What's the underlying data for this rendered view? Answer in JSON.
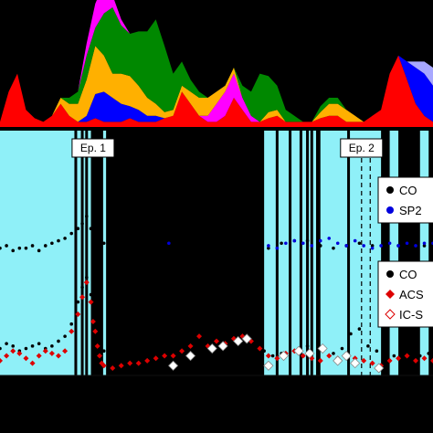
{
  "chart_data": [
    {
      "type": "area",
      "panel": "top",
      "stacked": true,
      "title": "",
      "xlabel": "",
      "ylabel": "",
      "x": [
        0,
        2,
        4,
        6,
        8,
        10,
        12,
        14,
        16,
        18,
        20,
        22,
        24,
        26,
        28,
        30,
        32,
        34,
        36,
        38,
        40,
        42,
        44,
        46,
        48,
        50,
        52,
        54,
        56,
        58,
        60,
        62,
        64,
        66,
        68,
        70,
        72,
        74,
        76,
        78,
        80,
        82,
        84,
        86,
        88,
        90,
        92,
        94,
        96,
        98,
        100
      ],
      "series": [
        {
          "color": "#ff0000",
          "values": [
            0.05,
            0.3,
            0.45,
            0.15,
            0.08,
            0.05,
            0.1,
            0.2,
            0.1,
            0.05,
            0.05,
            0.08,
            0.05,
            0.05,
            0.05,
            0.08,
            0.05,
            0.05,
            0.05,
            0.08,
            0.1,
            0.3,
            0.2,
            0.1,
            0.05,
            0.05,
            0.1,
            0.25,
            0.15,
            0.05,
            0.05,
            0.08,
            0.1,
            0.05,
            0.05,
            0.05,
            0.05,
            0.08,
            0.1,
            0.1,
            0.05,
            0.05,
            0.05,
            0.1,
            0.15,
            0.45,
            0.6,
            0.4,
            0.2,
            0.1,
            0.05
          ]
        },
        {
          "color": "#ff00ff",
          "values": [
            0,
            0,
            0,
            0,
            0,
            0,
            0,
            0,
            0,
            0,
            0,
            0,
            0,
            0,
            0,
            0,
            0,
            0,
            0,
            0,
            0,
            0,
            0,
            0,
            0.05,
            0.15,
            0.2,
            0.2,
            0.1,
            0.05,
            0,
            0,
            0,
            0,
            0,
            0,
            0,
            0,
            0,
            0,
            0,
            0,
            0,
            0,
            0,
            0,
            0,
            0,
            0,
            0,
            0
          ]
        },
        {
          "color": "#0000ff",
          "values": [
            0,
            0,
            0,
            0,
            0,
            0,
            0,
            0,
            0,
            0,
            0.05,
            0.2,
            0.25,
            0.2,
            0.15,
            0.1,
            0.1,
            0.05,
            0.05,
            0,
            0,
            0,
            0,
            0,
            0,
            0,
            0,
            0,
            0,
            0,
            0,
            0,
            0,
            0,
            0,
            0,
            0,
            0,
            0,
            0,
            0,
            0,
            0,
            0,
            0,
            0,
            0,
            0.15,
            0.3,
            0.35,
            0.3
          ]
        },
        {
          "color": "#ffb000",
          "values": [
            0,
            0,
            0,
            0,
            0,
            0,
            0,
            0.05,
            0.1,
            0.15,
            0.3,
            0.4,
            0.3,
            0.2,
            0.25,
            0.25,
            0.2,
            0.15,
            0.1,
            0.05,
            0.05,
            0.05,
            0.1,
            0.15,
            0.15,
            0.1,
            0.05,
            0.05,
            0,
            0,
            0,
            0.05,
            0.05,
            0,
            0,
            0,
            0,
            0.05,
            0.1,
            0.1,
            0.1,
            0.05,
            0,
            0,
            0,
            0,
            0,
            0,
            0,
            0,
            0
          ]
        },
        {
          "color": "#008800",
          "values": [
            0,
            0,
            0,
            0,
            0,
            0,
            0,
            0,
            0.05,
            0.1,
            0.2,
            0.15,
            0.35,
            0.55,
            0.4,
            0.35,
            0.45,
            0.55,
            0.7,
            0.55,
            0.3,
            0.2,
            0.1,
            0.05,
            0,
            0,
            0,
            0,
            0.1,
            0.2,
            0.4,
            0.3,
            0.2,
            0.1,
            0.05,
            0,
            0,
            0.05,
            0.05,
            0.05,
            0,
            0,
            0,
            0,
            0,
            0,
            0,
            0,
            0,
            0,
            0
          ]
        },
        {
          "color": "#ff00ff",
          "values": [
            0,
            0,
            0,
            0,
            0,
            0,
            0,
            0,
            0,
            0,
            0.1,
            0.2,
            0.25,
            0.1,
            0.05,
            0,
            0,
            0,
            0,
            0,
            0,
            0,
            0,
            0,
            0,
            0,
            0,
            0,
            0,
            0,
            0,
            0,
            0,
            0,
            0,
            0,
            0,
            0,
            0,
            0,
            0,
            0,
            0,
            0,
            0,
            0,
            0,
            0,
            0,
            0,
            0
          ]
        },
        {
          "color": "#a8a8ff",
          "values": [
            0,
            0,
            0,
            0,
            0,
            0,
            0,
            0,
            0,
            0,
            0,
            0,
            0,
            0,
            0,
            0,
            0,
            0,
            0,
            0,
            0,
            0,
            0,
            0,
            0,
            0,
            0,
            0,
            0,
            0,
            0,
            0,
            0,
            0,
            0,
            0,
            0,
            0,
            0,
            0,
            0,
            0,
            0,
            0,
            0,
            0,
            0,
            0,
            0.05,
            0.1,
            0.15
          ]
        }
      ]
    },
    {
      "type": "scatter",
      "panel": "bottom",
      "title": "",
      "xlabel": "",
      "ylabel": "",
      "x_range": [
        0,
        100
      ],
      "y_range": [
        0,
        100
      ],
      "shaded_intervals": [
        [
          0,
          21
        ],
        [
          23.5,
          24.5
        ],
        [
          61,
          73
        ],
        [
          74,
          88
        ],
        [
          90,
          92
        ],
        [
          97,
          99
        ]
      ],
      "vertical_lines": [
        17.5,
        19,
        20,
        21.5,
        22.5,
        23.5,
        55.5,
        56.5,
        57.5,
        58.5,
        64,
        67,
        69.5,
        71,
        72,
        80.5
      ],
      "dashed_lines": [
        83.5,
        85.5
      ],
      "episodes": [
        {
          "label": "Ep. 1",
          "x": 21.5
        },
        {
          "label": "Ep. 2",
          "x": 83.5
        }
      ],
      "legends": [
        {
          "entries": [
            {
              "label": "CO",
              "color": "#000000",
              "marker": "circle"
            },
            {
              "label": "SP2",
              "color": "#0000dd",
              "marker": "circle"
            }
          ]
        },
        {
          "entries": [
            {
              "label": "CO",
              "color": "#000000",
              "marker": "circle"
            },
            {
              "label": "ACS",
              "color": "#dd0000",
              "marker": "diamond"
            },
            {
              "label": "IC-S",
              "color": "#ffffff",
              "marker": "open-diamond"
            }
          ]
        }
      ],
      "series": [
        {
          "name": "CO",
          "color": "#000000",
          "x": [
            0,
            1.5,
            3,
            4.5,
            6,
            7.5,
            9,
            10.5,
            12,
            13.5,
            15,
            16.5,
            18,
            19,
            20,
            21,
            24,
            27,
            30,
            33,
            36,
            40,
            42,
            44,
            46,
            50,
            53,
            56,
            57,
            58,
            59,
            60,
            62,
            65,
            68,
            71,
            74,
            77,
            80,
            83,
            86,
            89,
            92,
            95,
            98
          ],
          "y": [
            52,
            53,
            51,
            52,
            52,
            53,
            51,
            53,
            54,
            55,
            56,
            58,
            60,
            62,
            65,
            60,
            54,
            55,
            55,
            53,
            52,
            54,
            53,
            52,
            52,
            51,
            51,
            52,
            60,
            57,
            55,
            54,
            52,
            54,
            55,
            55,
            53,
            52,
            53,
            54,
            53,
            53,
            53,
            53,
            53
          ]
        },
        {
          "name": "SP2",
          "color": "#0000dd",
          "x": [
            39,
            62,
            64,
            66,
            68,
            70,
            72,
            74,
            76,
            78,
            80,
            82,
            84,
            86,
            88,
            90,
            92,
            94,
            96,
            98,
            100
          ],
          "y": [
            54,
            53,
            52,
            54,
            55,
            54,
            53,
            55,
            56,
            54,
            53,
            55,
            53,
            52,
            53,
            54,
            53,
            54,
            53,
            54,
            54
          ]
        },
        {
          "name": "CO",
          "color": "#000000",
          "x": [
            0,
            1.5,
            3,
            4.5,
            6,
            7.5,
            9,
            10.5,
            12,
            13.5,
            15,
            16.5,
            18,
            19,
            20,
            21,
            22,
            23,
            24,
            27,
            30,
            33,
            36,
            40,
            45,
            48,
            50,
            53,
            55,
            57,
            59,
            61,
            63,
            65,
            68,
            71,
            74,
            77,
            79,
            81,
            83,
            85,
            87,
            89,
            91,
            93,
            95,
            97,
            99
          ],
          "y": [
            11,
            13,
            12,
            10,
            11,
            12,
            13,
            11,
            12,
            14,
            16,
            21,
            30,
            36,
            40,
            33,
            22,
            16,
            10,
            8,
            7,
            7,
            8,
            8,
            10,
            12,
            13,
            14,
            12,
            15,
            13,
            10,
            8,
            9,
            10,
            12,
            11,
            9,
            11,
            17,
            19,
            12,
            10,
            7,
            8,
            9,
            7,
            8,
            9
          ]
        },
        {
          "name": "ACS",
          "color": "#dd0000",
          "x": [
            0,
            1.5,
            3,
            4.5,
            6,
            7.5,
            9,
            10.5,
            12,
            13.5,
            15,
            16.5,
            18,
            19,
            20,
            21,
            21.5,
            22,
            22.5,
            23,
            23.5,
            24,
            26,
            28,
            30,
            32,
            34,
            36,
            38,
            40,
            42,
            44,
            46,
            48,
            50,
            52,
            54,
            56,
            58,
            60,
            62,
            64,
            66,
            68,
            70,
            72,
            74,
            76,
            78,
            80,
            82,
            84,
            86,
            88,
            90,
            92,
            94,
            96,
            98,
            100
          ],
          "y": [
            6,
            8,
            10,
            9,
            7,
            5,
            8,
            10,
            9,
            8,
            10,
            18,
            25,
            32,
            38,
            30,
            22,
            18,
            12,
            8,
            5,
            4,
            3,
            4,
            5,
            5,
            6,
            7,
            8,
            8,
            10,
            12,
            16,
            12,
            14,
            13,
            15,
            16,
            14,
            11,
            8,
            7,
            9,
            10,
            8,
            7,
            6,
            8,
            7,
            8,
            7,
            6,
            5,
            4,
            6,
            7,
            8,
            6,
            7,
            6
          ]
        },
        {
          "name": "IC-S",
          "color": "#ffffff",
          "marker": "open-diamond",
          "x": [
            40,
            44,
            49,
            51.5,
            55,
            57,
            62,
            65.5,
            69,
            71.5,
            74.5,
            78,
            80,
            82,
            87.5
          ],
          "y": [
            4,
            8,
            11,
            12,
            14,
            15,
            4,
            8,
            10,
            9,
            11,
            6,
            8,
            5,
            3
          ]
        }
      ]
    }
  ]
}
